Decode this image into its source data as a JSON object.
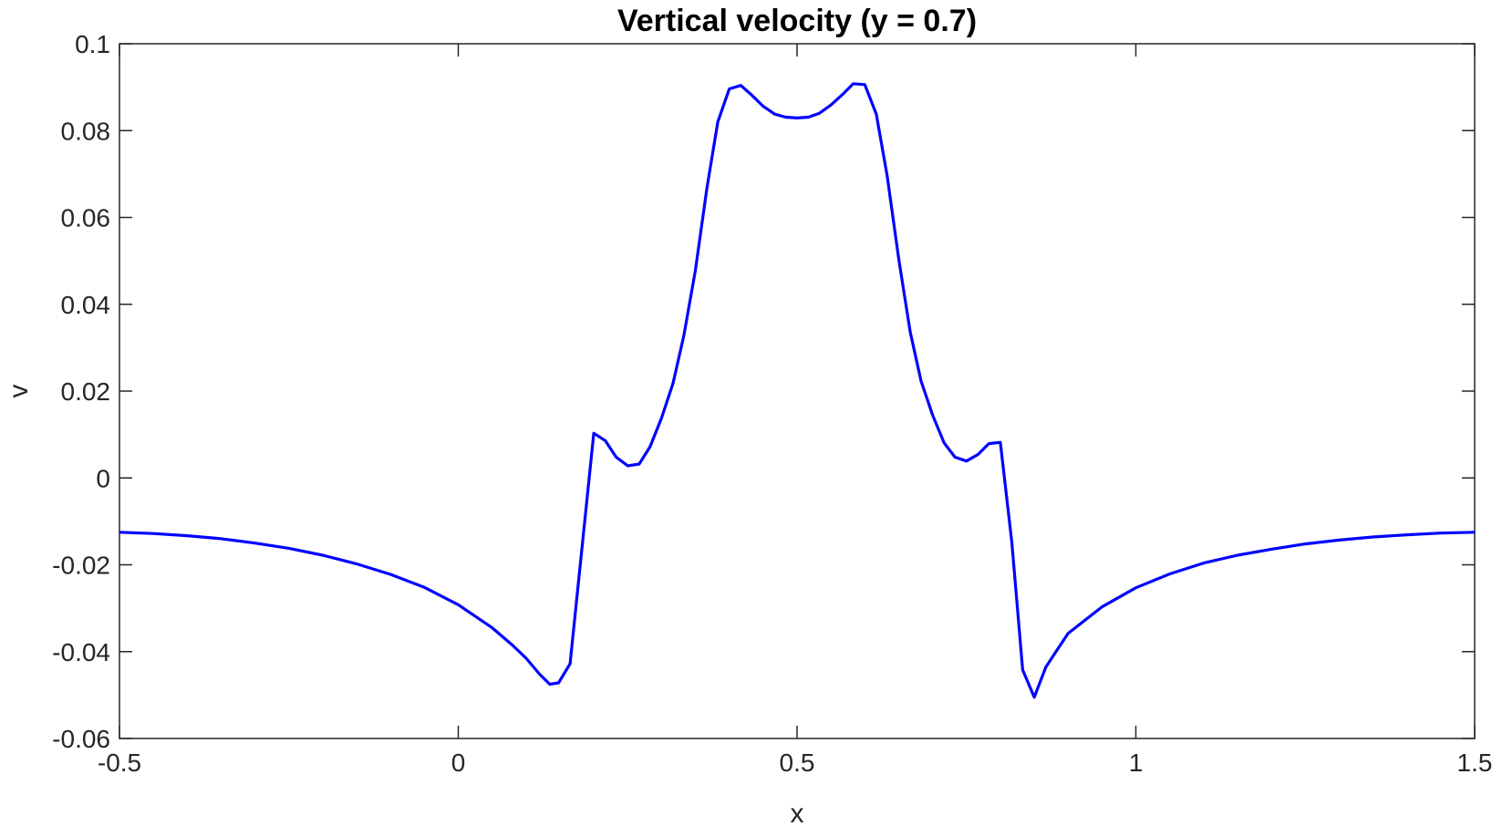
{
  "chart_data": {
    "type": "line",
    "title": "Vertical velocity (y = 0.7)",
    "xlabel": "x",
    "ylabel": "v",
    "xlim": [
      -0.5,
      1.5
    ],
    "ylim": [
      -0.06,
      0.1
    ],
    "grid": false,
    "xticks": [
      -0.5,
      0,
      0.5,
      1,
      1.5
    ],
    "xtick_labels": [
      "-0.5",
      "0",
      "0.5",
      "1",
      "1.5"
    ],
    "yticks": [
      -0.06,
      -0.04,
      -0.02,
      0,
      0.02,
      0.04,
      0.06,
      0.08,
      0.1
    ],
    "ytick_labels": [
      "-0.06",
      "-0.04",
      "-0.02",
      "0",
      "0.02",
      "0.04",
      "0.06",
      "0.08",
      "0.1"
    ],
    "series": [
      {
        "color": "#0000ff",
        "x": [
          -0.5,
          -0.45,
          -0.4,
          -0.35,
          -0.3,
          -0.25,
          -0.2,
          -0.15,
          -0.1,
          -0.05,
          0.0,
          0.05,
          0.08,
          0.1,
          0.12,
          0.135,
          0.148,
          0.165,
          0.2,
          0.217,
          0.233,
          0.25,
          0.267,
          0.283,
          0.3,
          0.317,
          0.333,
          0.35,
          0.367,
          0.383,
          0.4,
          0.417,
          0.433,
          0.45,
          0.467,
          0.483,
          0.5,
          0.517,
          0.533,
          0.55,
          0.567,
          0.583,
          0.6,
          0.617,
          0.633,
          0.65,
          0.667,
          0.683,
          0.7,
          0.717,
          0.733,
          0.75,
          0.767,
          0.783,
          0.8,
          0.817,
          0.833,
          0.85,
          0.867,
          0.883,
          0.9,
          0.95,
          1.0,
          1.05,
          1.1,
          1.15,
          1.2,
          1.25,
          1.3,
          1.35,
          1.4,
          1.45,
          1.5
        ],
        "y": [
          -0.0125,
          -0.0128,
          -0.0133,
          -0.014,
          -0.015,
          -0.0162,
          -0.0178,
          -0.0198,
          -0.0222,
          -0.0252,
          -0.0292,
          -0.0345,
          -0.0385,
          -0.0415,
          -0.0452,
          -0.0475,
          -0.0472,
          -0.0428,
          0.0103,
          0.0086,
          0.0048,
          0.0028,
          0.0032,
          0.0072,
          0.0138,
          0.0218,
          0.0328,
          0.0478,
          0.0668,
          0.082,
          0.0896,
          0.0904,
          0.0882,
          0.0856,
          0.0838,
          0.0831,
          0.0829,
          0.0831,
          0.084,
          0.0859,
          0.0883,
          0.0908,
          0.0906,
          0.0838,
          0.0696,
          0.0506,
          0.0336,
          0.0223,
          0.0145,
          0.0081,
          0.0048,
          0.0039,
          0.0054,
          0.0079,
          0.0082,
          -0.0148,
          -0.0442,
          -0.0505,
          -0.0436,
          -0.0398,
          -0.0358,
          -0.0297,
          -0.0253,
          -0.0221,
          -0.0196,
          -0.0178,
          -0.0164,
          -0.0152,
          -0.0143,
          -0.0136,
          -0.0131,
          -0.0127,
          -0.0125
        ]
      }
    ]
  }
}
